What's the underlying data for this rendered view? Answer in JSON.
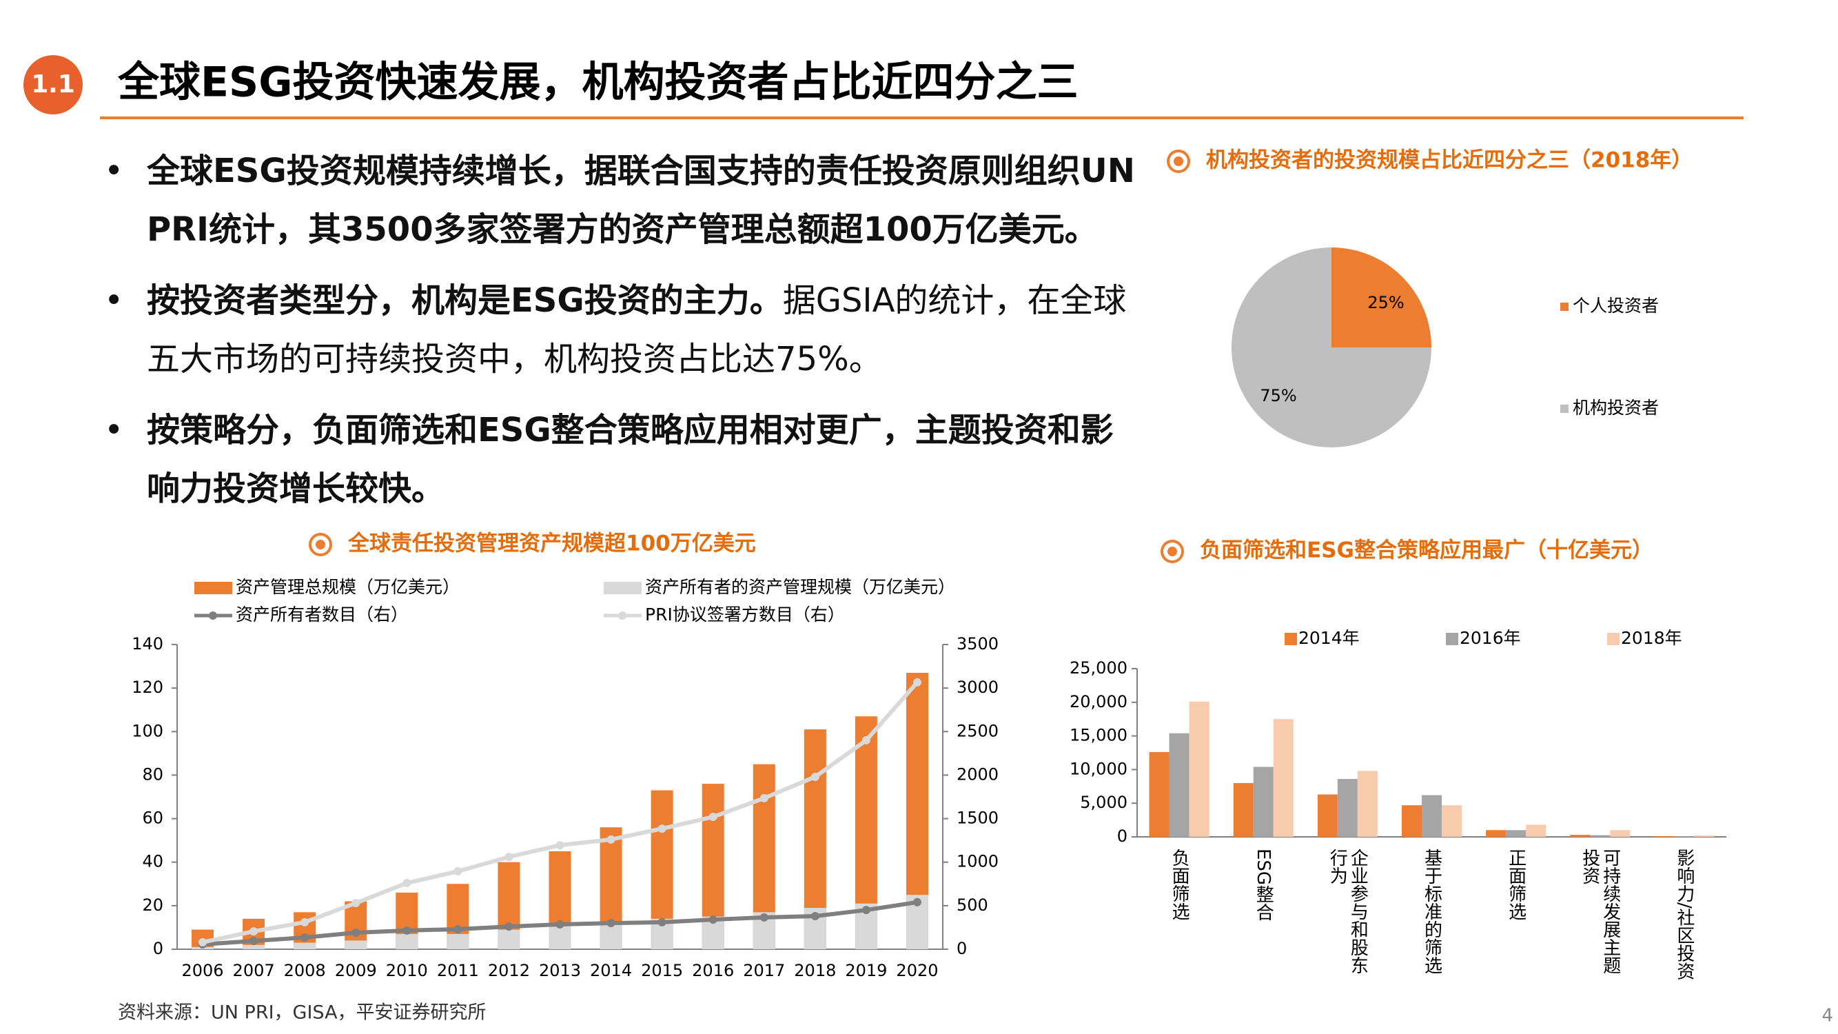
{
  "header": {
    "badge": "1.1",
    "title": "全球ESG投资快速发展，机构投资者占比近四分之三"
  },
  "bullets": [
    [
      {
        "text": "全球ESG投资规模持续增长，据联合国支持的责任投资原则组织UN PRI统计，其3500多家签署方的资产管理总额超100万亿美元。",
        "bold": true
      }
    ],
    [
      {
        "text": "按投资者类型分，机构是ESG投资的主力。",
        "bold": true
      },
      {
        "text": "据GSIA的统计，在全球五大市场的可持续投资中，机构投资占比达75%。",
        "bold": false
      }
    ],
    [
      {
        "text": "按策略分，负面筛选和ESG整合策略应用相对更广，主题投资和影响力投资增长较快。",
        "bold": true
      }
    ]
  ],
  "source": "资料来源：UN PRI，GISA，平安证券研究所",
  "page_number": "4",
  "chart_data": [
    {
      "type": "pie",
      "title": "机构投资者的投资规模占比近四分之三（2018年）",
      "categories": [
        "个人投资者",
        "机构投资者"
      ],
      "values": [
        25,
        75
      ],
      "value_labels": [
        "25%",
        "75%"
      ],
      "colors": [
        "#ED7D31",
        "#BFBFBF"
      ]
    },
    {
      "type": "bar-line",
      "title": "全球责任投资管理资产规模超100万亿美元",
      "categories": [
        "2006",
        "2007",
        "2008",
        "2009",
        "2010",
        "2011",
        "2012",
        "2013",
        "2014",
        "2015",
        "2016",
        "2017",
        "2018",
        "2019",
        "2020"
      ],
      "series": [
        {
          "name": "资产管理总规模（万亿美元）",
          "type": "bar",
          "color": "#ED7D31",
          "values": [
            9,
            14,
            17,
            22,
            26,
            30,
            40,
            45,
            56,
            73,
            76,
            85,
            101,
            107,
            127
          ]
        },
        {
          "name": "资产所有者的资产管理规模（万亿美元）",
          "type": "bar",
          "color": "#D9D9D9",
          "values": [
            1,
            2,
            3,
            4,
            7,
            7,
            9,
            12,
            12,
            14,
            15,
            17,
            19,
            21,
            25
          ]
        },
        {
          "name": "资产所有者数目（右）",
          "type": "line",
          "axis": "y2",
          "color": "#7F7F7F",
          "values": [
            55,
            95,
            135,
            190,
            215,
            230,
            260,
            285,
            300,
            310,
            340,
            365,
            380,
            450,
            540
          ]
        },
        {
          "name": "PRI协议签署方数目（右）",
          "type": "line",
          "axis": "y2",
          "color": "#D9D9D9",
          "values": [
            80,
            205,
            310,
            530,
            760,
            895,
            1060,
            1195,
            1260,
            1385,
            1520,
            1735,
            1980,
            2400,
            3065
          ]
        }
      ],
      "ylim": [
        0,
        140
      ],
      "yticks": [
        0,
        20,
        40,
        60,
        80,
        100,
        120,
        140
      ],
      "y2lim": [
        0,
        3500
      ],
      "y2ticks": [
        0,
        500,
        1000,
        1500,
        2000,
        2500,
        3000,
        3500
      ]
    },
    {
      "type": "bar",
      "title": "负面筛选和ESG整合策略应用最广（十亿美元）",
      "categories": [
        "负面筛选",
        "ESG整合",
        "企业参与和股东行为",
        "基于标准的筛选",
        "正面筛选",
        "可持续发展主题投资",
        "影响力/社区投资"
      ],
      "series": [
        {
          "name": "2014年",
          "color": "#ED7D31",
          "values": [
            12600,
            8000,
            6300,
            4700,
            1000,
            300,
            100
          ]
        },
        {
          "name": "2016年",
          "color": "#A5A5A5",
          "values": [
            15400,
            10400,
            8600,
            6200,
            1000,
            250,
            100
          ]
        },
        {
          "name": "2018年",
          "color": "#F8CBAD",
          "values": [
            20100,
            17500,
            9800,
            4700,
            1800,
            1000,
            200
          ]
        }
      ],
      "ylim": [
        0,
        25000
      ],
      "yticks": [
        0,
        {
          "value": 5000,
          "label": "5,000"
        },
        {
          "value": 10000,
          "label": "10,000"
        },
        {
          "value": 15000,
          "label": "15,000"
        },
        {
          "value": 20000,
          "label": "20,000"
        },
        {
          "value": 25000,
          "label": "25,000"
        }
      ]
    }
  ]
}
